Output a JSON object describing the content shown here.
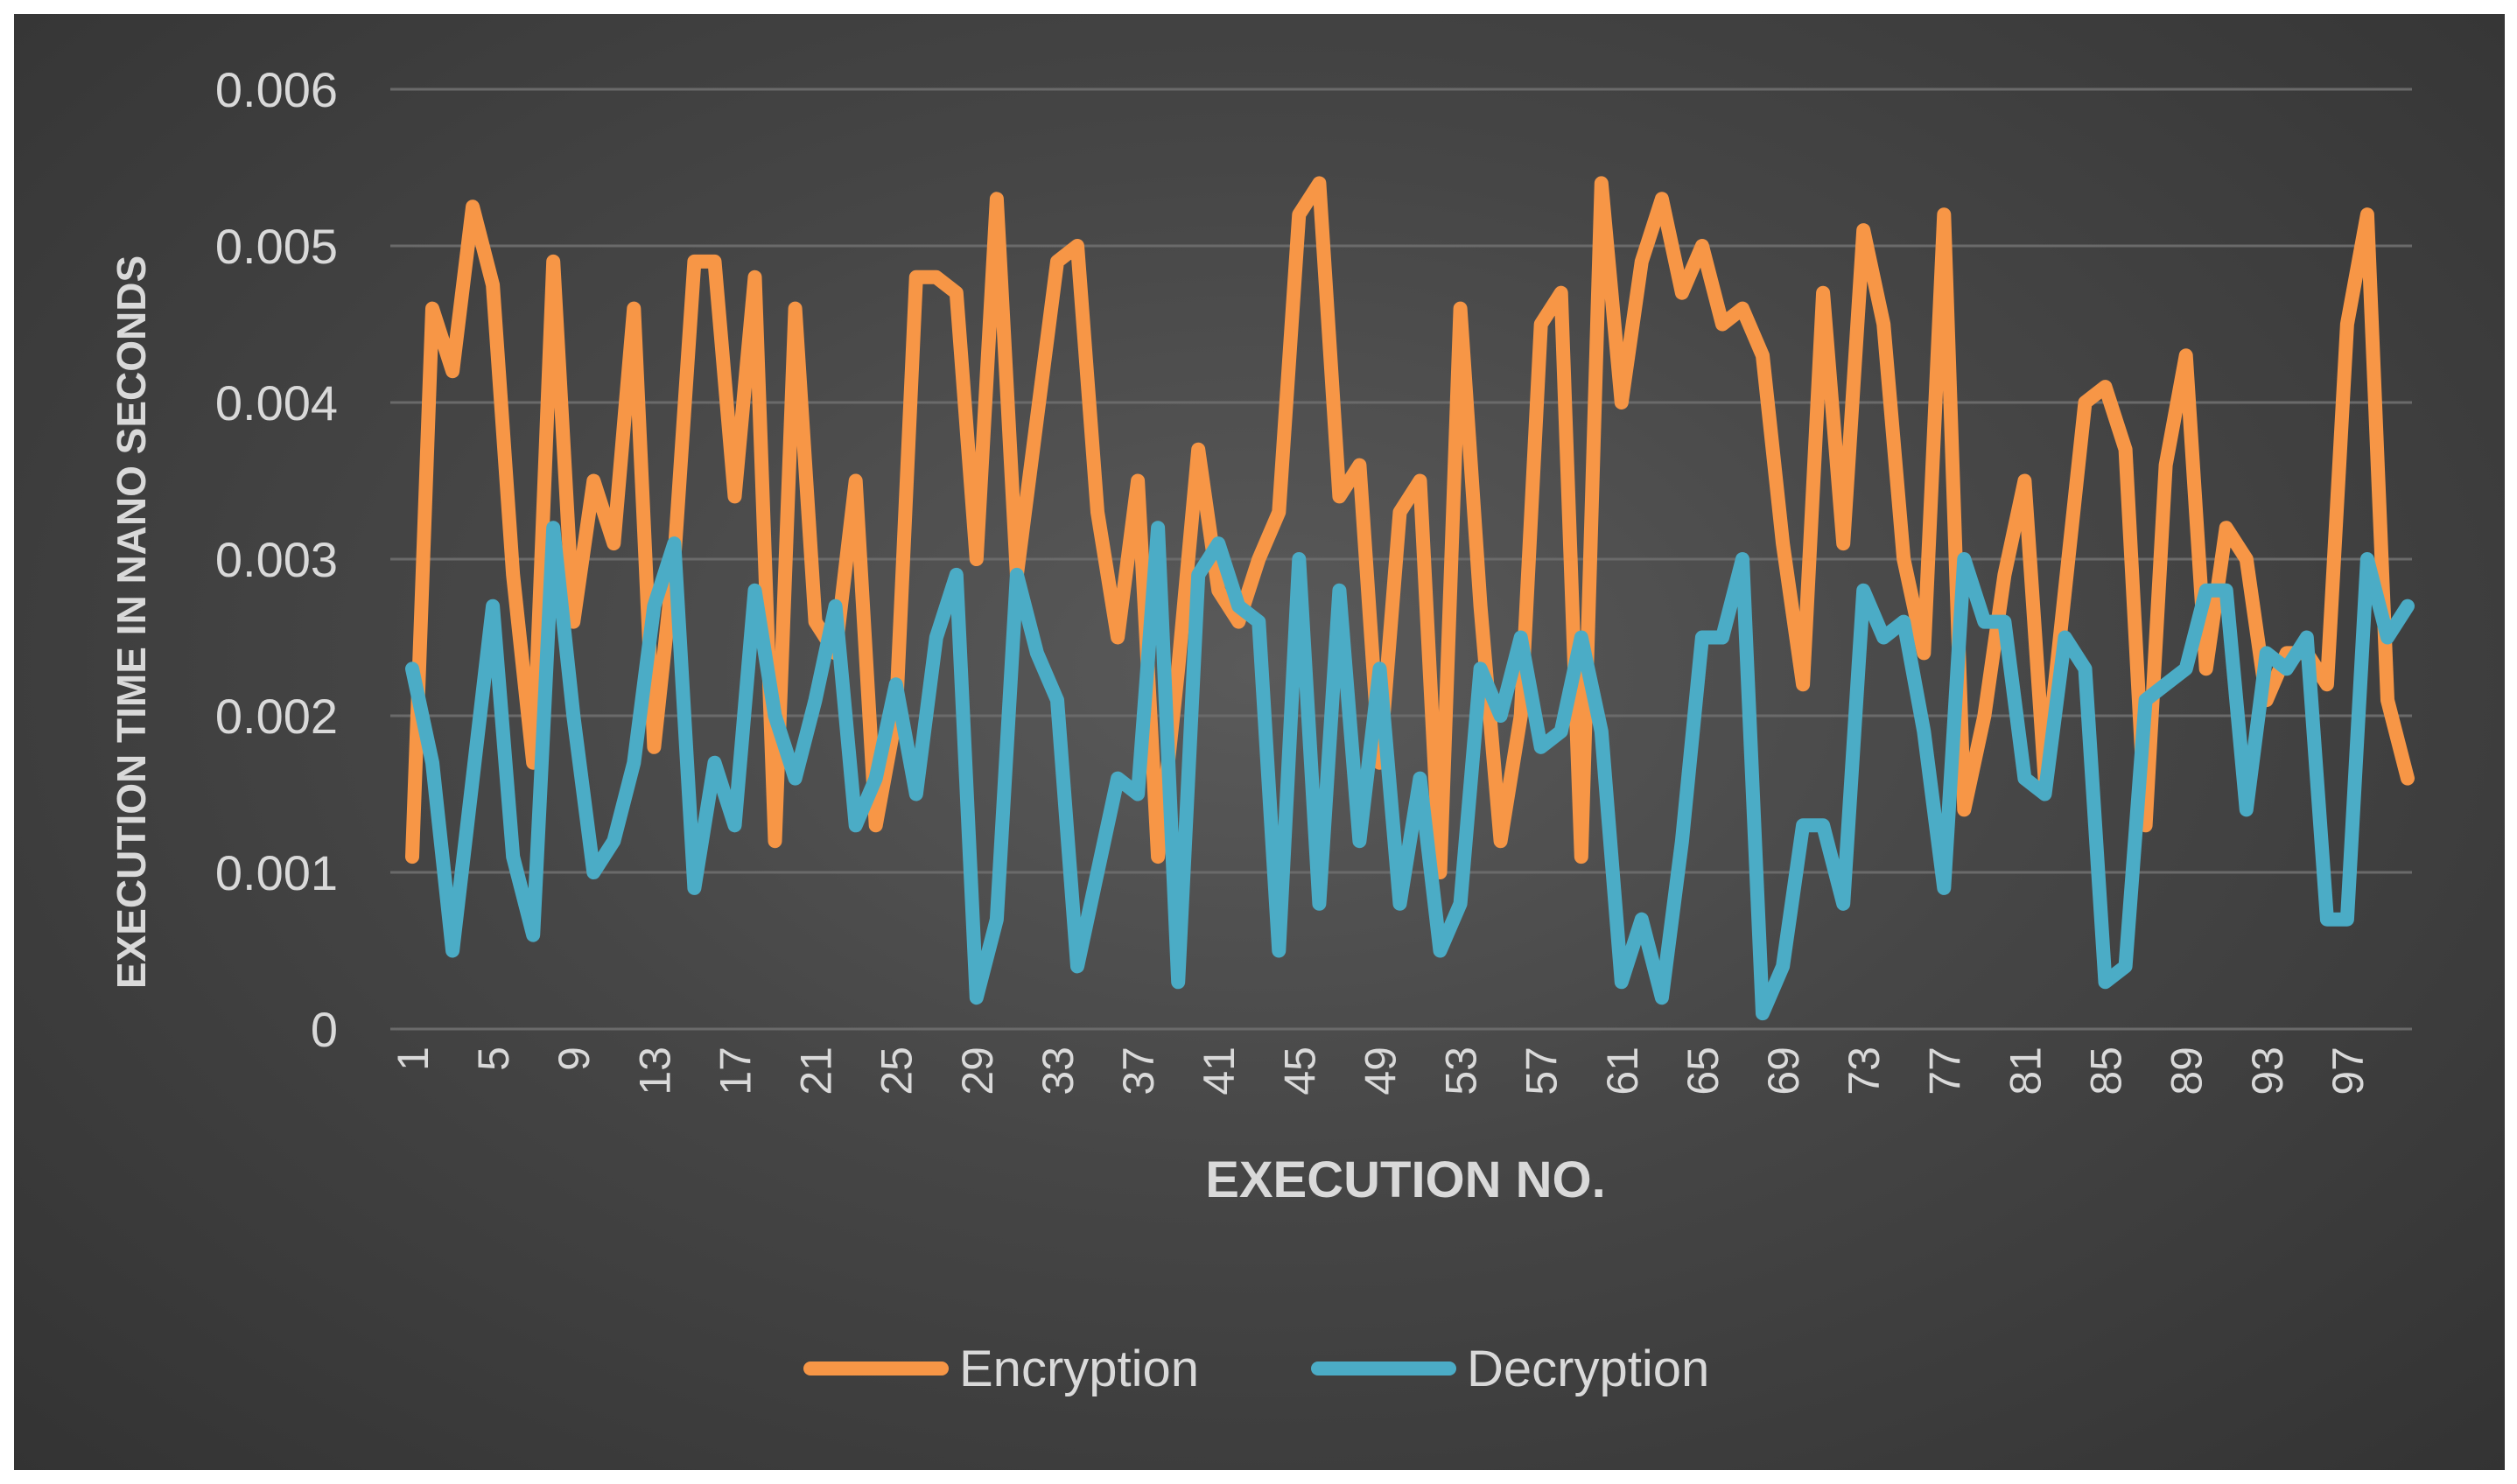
{
  "chart_data": {
    "type": "line",
    "title": "",
    "xlabel": "EXECUTION NO.",
    "ylabel": "EXECUTION TIME IN NANO SECONDS",
    "ylim": [
      0,
      0.006
    ],
    "yticks": [
      "0",
      "0.001",
      "0.002",
      "0.003",
      "0.004",
      "0.005",
      "0.006"
    ],
    "x": [
      1,
      2,
      3,
      4,
      5,
      6,
      7,
      8,
      9,
      10,
      11,
      12,
      13,
      14,
      15,
      16,
      17,
      18,
      19,
      20,
      21,
      22,
      23,
      24,
      25,
      26,
      27,
      28,
      29,
      30,
      31,
      32,
      33,
      34,
      35,
      36,
      37,
      38,
      39,
      40,
      41,
      42,
      43,
      44,
      45,
      46,
      47,
      48,
      49,
      50,
      51,
      52,
      53,
      54,
      55,
      56,
      57,
      58,
      59,
      60,
      61,
      62,
      63,
      64,
      65,
      66,
      67,
      68,
      69,
      70,
      71,
      72,
      73,
      74,
      75,
      76,
      77,
      78,
      79,
      80,
      81,
      82,
      83,
      84,
      85,
      86,
      87,
      88,
      89,
      90,
      91,
      92,
      93,
      94,
      95,
      96,
      97,
      98,
      99,
      100
    ],
    "xtick_labels": [
      "1",
      "5",
      "9",
      "13",
      "17",
      "21",
      "25",
      "29",
      "33",
      "37",
      "41",
      "45",
      "49",
      "53",
      "57",
      "61",
      "65",
      "69",
      "73",
      "77",
      "81",
      "85",
      "89",
      "93",
      "97"
    ],
    "grid": true,
    "legend_position": "bottom",
    "series": [
      {
        "name": "Encryption",
        "color": "#f79646",
        "values": [
          0.0011,
          0.0046,
          0.0042,
          0.00525,
          0.00475,
          0.0029,
          0.0017,
          0.0049,
          0.0026,
          0.0035,
          0.0031,
          0.0046,
          0.0018,
          0.003,
          0.0049,
          0.0049,
          0.0034,
          0.0048,
          0.0012,
          0.0046,
          0.0026,
          0.0024,
          0.0035,
          0.0013,
          0.002,
          0.0048,
          0.0048,
          0.0047,
          0.003,
          0.0053,
          0.0029,
          0.0039,
          0.0049,
          0.005,
          0.0033,
          0.0025,
          0.0035,
          0.0011,
          0.0023,
          0.0037,
          0.0028,
          0.0026,
          0.003,
          0.0033,
          0.0052,
          0.0054,
          0.0034,
          0.0036,
          0.0017,
          0.0033,
          0.0035,
          0.001,
          0.0046,
          0.0027,
          0.0012,
          0.002,
          0.0045,
          0.0047,
          0.0011,
          0.0054,
          0.004,
          0.0049,
          0.0053,
          0.0047,
          0.005,
          0.0045,
          0.0046,
          0.0043,
          0.0031,
          0.0022,
          0.0047,
          0.0031,
          0.0051,
          0.0045,
          0.003,
          0.0024,
          0.0052,
          0.0014,
          0.002,
          0.0029,
          0.0035,
          0.0016,
          0.0028,
          0.004,
          0.0041,
          0.0037,
          0.0013,
          0.0036,
          0.0043,
          0.0023,
          0.0032,
          0.003,
          0.0021,
          0.0024,
          0.0024,
          0.0022,
          0.0045,
          0.0052,
          0.0021,
          0.0016
        ]
      },
      {
        "name": "Decryption",
        "color": "#4bacc6",
        "values": [
          0.0023,
          0.0017,
          0.0005,
          0.0016,
          0.0027,
          0.0011,
          0.0006,
          0.0032,
          0.002,
          0.001,
          0.0012,
          0.0017,
          0.0027,
          0.0031,
          0.0009,
          0.0017,
          0.0013,
          0.0028,
          0.002,
          0.0016,
          0.0021,
          0.0027,
          0.0013,
          0.0016,
          0.0022,
          0.0015,
          0.0025,
          0.0029,
          0.0002,
          0.0007,
          0.0029,
          0.0024,
          0.0021,
          0.0004,
          0.001,
          0.0016,
          0.0015,
          0.0032,
          0.0003,
          0.0029,
          0.0031,
          0.0027,
          0.0026,
          0.0005,
          0.003,
          0.0008,
          0.0028,
          0.0012,
          0.0023,
          0.0008,
          0.0016,
          0.0005,
          0.0008,
          0.0023,
          0.002,
          0.0025,
          0.0018,
          0.0019,
          0.0025,
          0.0019,
          0.0003,
          0.0007,
          0.0002,
          0.0012,
          0.0025,
          0.0025,
          0.003,
          0.0001,
          0.0004,
          0.0013,
          0.0013,
          0.0008,
          0.0028,
          0.0025,
          0.0026,
          0.0019,
          0.0009,
          0.003,
          0.0026,
          0.0026,
          0.0016,
          0.0015,
          0.0025,
          0.0023,
          0.0003,
          0.0004,
          0.0021,
          0.0022,
          0.0023,
          0.0028,
          0.0028,
          0.0014,
          0.0024,
          0.0023,
          0.0025,
          0.0007,
          0.0007,
          0.003,
          0.0025,
          0.0027
        ]
      }
    ]
  }
}
